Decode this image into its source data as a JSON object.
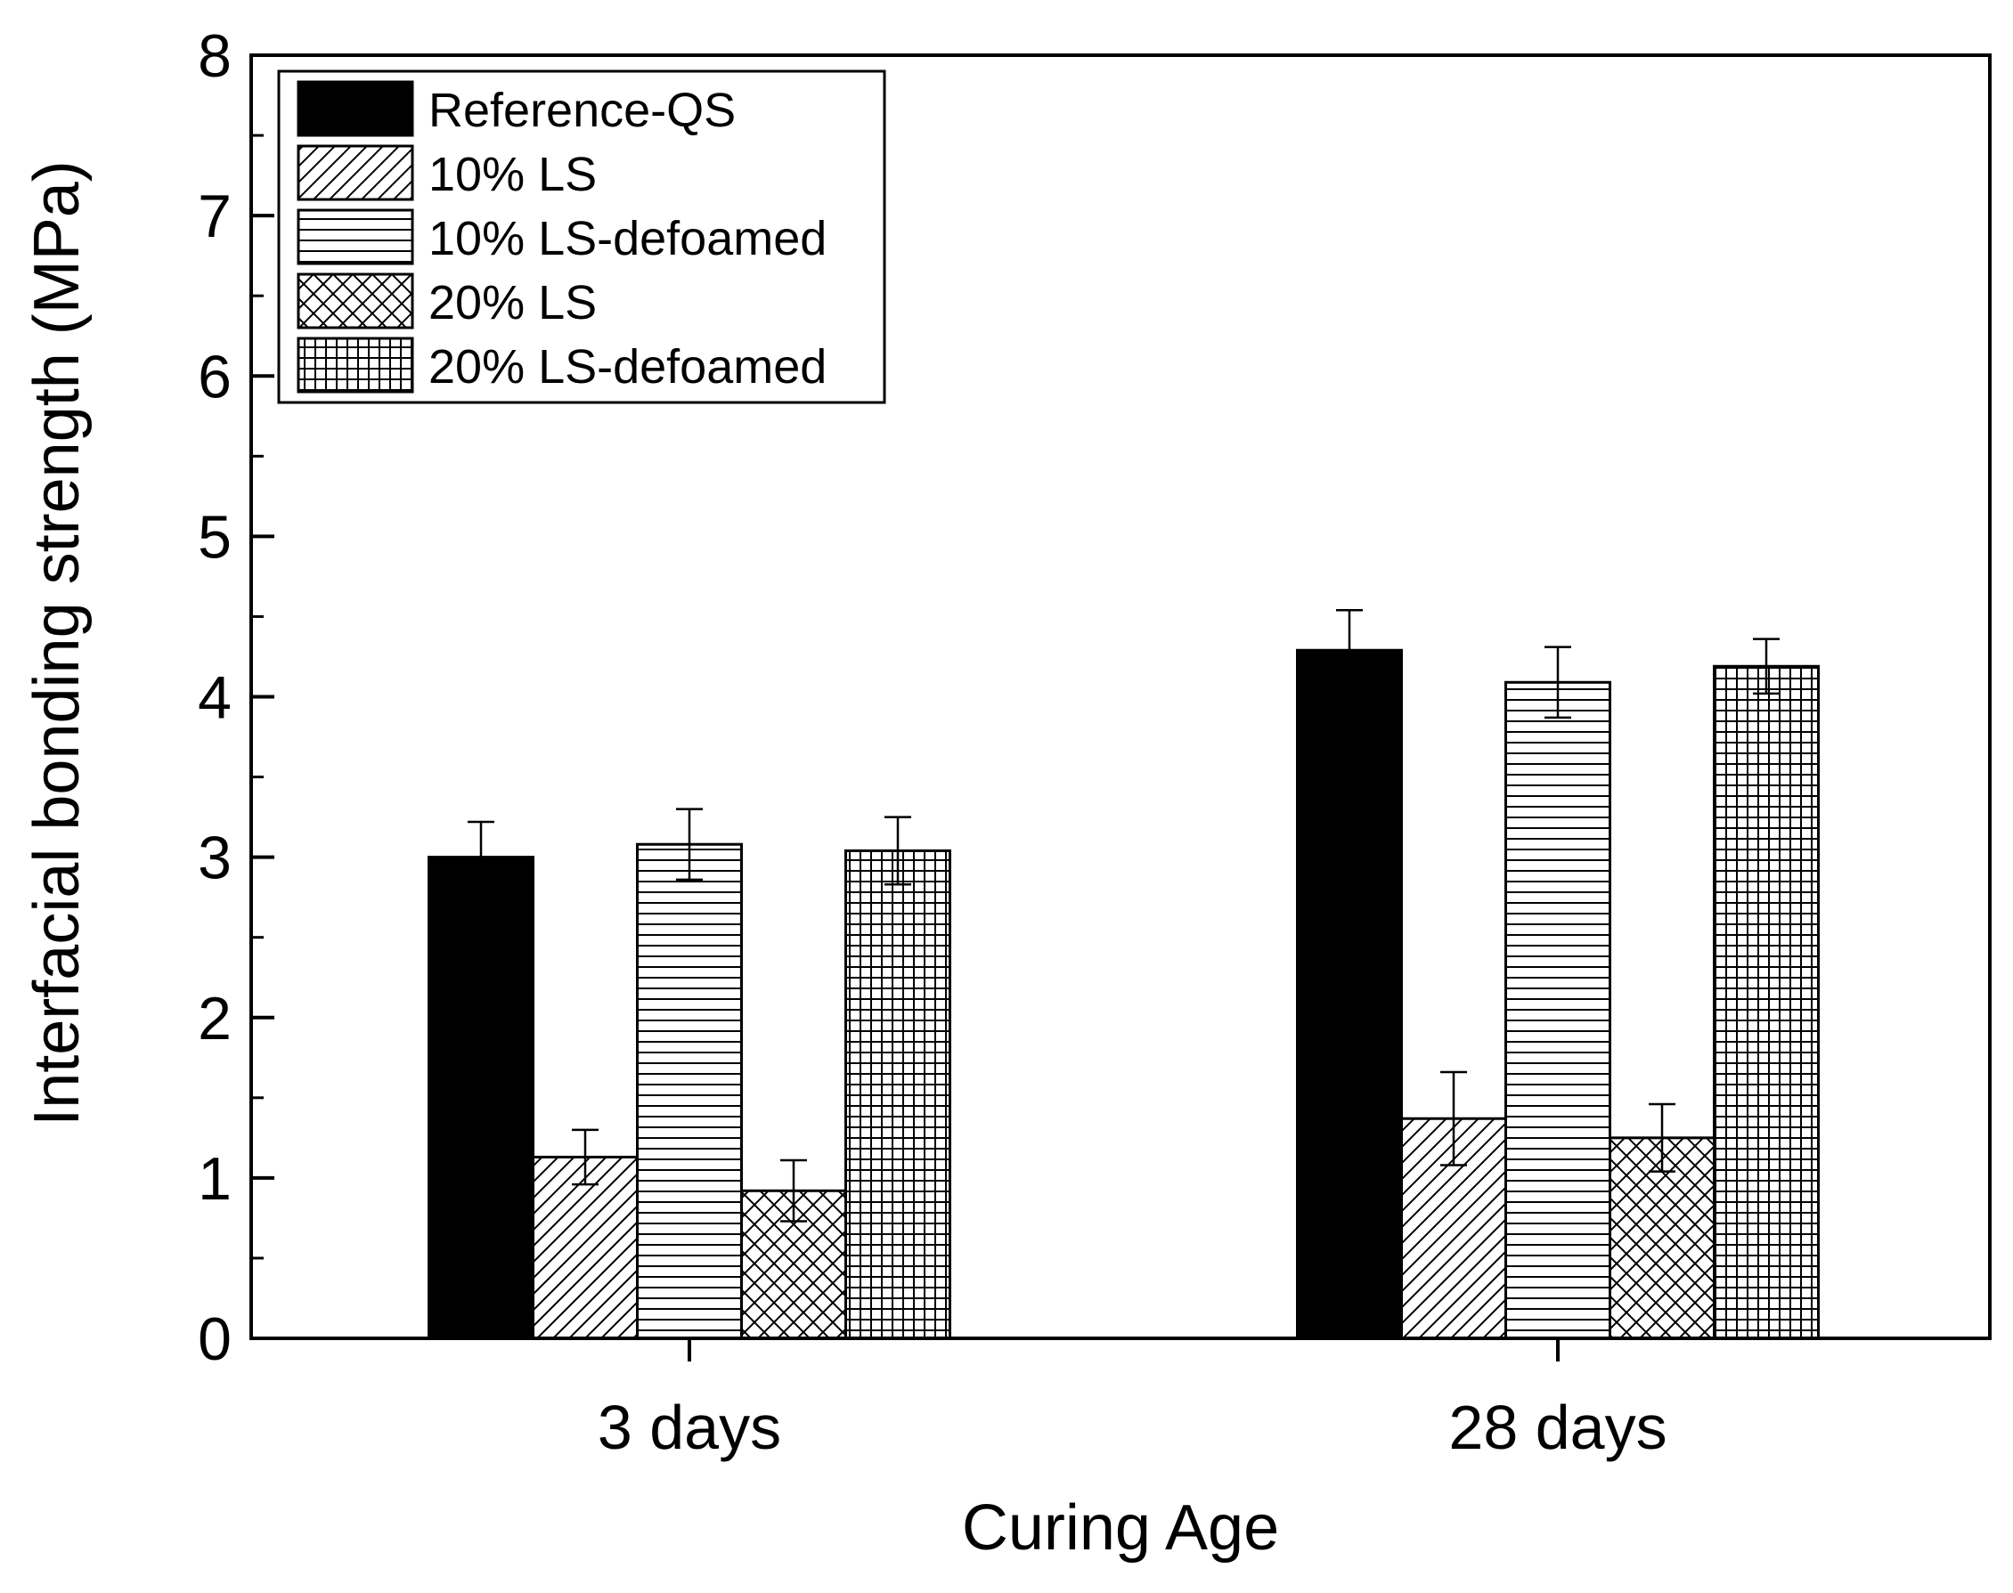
{
  "chart_data": {
    "type": "bar",
    "xlabel": "Curing Age",
    "ylabel": "Interfacial bonding strength (MPa)",
    "ylim": [
      0,
      8
    ],
    "yticks": [
      "0",
      "1",
      "2",
      "3",
      "4",
      "5",
      "6",
      "7",
      "8"
    ],
    "categories": [
      "3 days",
      "28 days"
    ],
    "legend_position": "top-left",
    "grid": false,
    "series": [
      {
        "name": "Reference-QS",
        "pattern": "solid",
        "values": [
          3.0,
          4.29
        ],
        "errors": [
          0.22,
          0.25
        ]
      },
      {
        "name": "10% LS",
        "pattern": "diagonal",
        "values": [
          1.13,
          1.37
        ],
        "errors": [
          0.17,
          0.29
        ]
      },
      {
        "name": "10% LS-defoamed",
        "pattern": "horizontal",
        "values": [
          3.08,
          4.09
        ],
        "errors": [
          0.22,
          0.22
        ]
      },
      {
        "name": "20% LS",
        "pattern": "crosshatch",
        "values": [
          0.92,
          1.25
        ],
        "errors": [
          0.19,
          0.21
        ]
      },
      {
        "name": "20% LS-defoamed",
        "pattern": "grid",
        "values": [
          3.04,
          4.19
        ],
        "errors": [
          0.21,
          0.17
        ]
      }
    ]
  }
}
